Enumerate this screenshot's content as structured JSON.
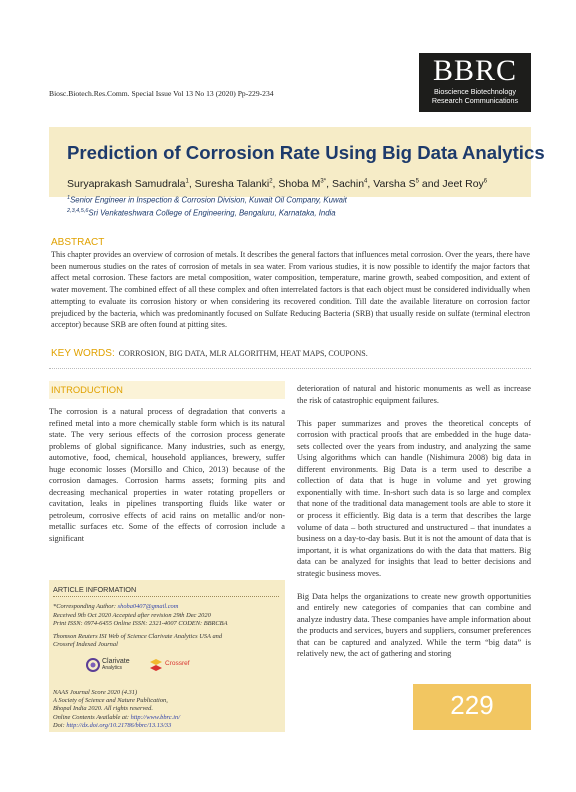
{
  "header": {
    "journal_ref": "Biosc.Biotech.Res.Comm. Special Issue Vol 13 No 13 (2020) Pp-229-234",
    "logo_big": "BBRC",
    "logo_line1": "Bioscience Biotechnology",
    "logo_line2": "Research Communications"
  },
  "article": {
    "title": "Prediction of Corrosion Rate Using Big Data Analytics",
    "authors": [
      {
        "name": "Suryaprakash Samudrala",
        "sup": "1"
      },
      {
        "name": "Suresha Talanki",
        "sup": "2"
      },
      {
        "name": "Shoba M",
        "sup": "3*"
      },
      {
        "name": "Sachin",
        "sup": "4"
      },
      {
        "name": "Varsha S",
        "sup": "5"
      },
      {
        "name": "Jeet Roy",
        "sup": "6"
      }
    ],
    "aff1_sup": "1",
    "aff1": "Senior Engineer in Inspection & Corrosion Division, Kuwait Oil Company, Kuwait",
    "aff2_sup": "2,3,4,5,6",
    "aff2": "Sri Venkateshwara College of Engineering, Bengaluru, Karnataka, India"
  },
  "abstract": {
    "heading": "ABSTRACT",
    "text": "This chapter provides an overview of corrosion of metals. It describes the general factors that influences metal corrosion. Over the years, there have been numerous studies on the rates of corrosion of metals in sea water. From various studies, it is now possible to identify the major factors that affect metal corrosion. These factors are metal composition, water composition, temperature, marine growth, seabed composition, and extent of water movement. The combined effect of all these complex and often interrelated factors is that each object must be considered individually when attempting to evaluate its corrosion history or when considering its recovered condition. Till date the available literature on corrosion factor prejudiced by the bacteria, which was predominantly focused on Sulfate Reducing Bacteria (SRB) that usually reside on sulfate (terminal electron acceptor) because SRB are often found at pitting sites."
  },
  "keywords": {
    "label": "KEY WORDS:",
    "text": "CORROSION, BIG DATA, MLR ALGORITHM, HEAT MAPS, COUPONS."
  },
  "intro": {
    "heading": "INTRODUCTION",
    "left_text": "The corrosion is a natural process of degradation that converts a refined metal into a more chemically stable form which is its natural state. The very serious effects of the corrosion process generate problems of global significance. Many industries, such as energy, automotive, food, chemical, household appliances, brewery, suffer huge economic losses (Morsillo and Chico, 2013) because of the corrosion damages. Corrosion harms assets; forming pits and decreasing mechanical properties in water rotating propellers or cavitation, leaks in pipelines transporting fluids like water or petroleum, corrosive effects of acid rains on metallic and/or non-metallic surfaces etc. Some of the effects of corrosion include a significant",
    "right_p1": "deterioration of natural and historic monuments as well as increase the risk of catastrophic equipment failures.",
    "right_p2": "This paper summarizes and proves the theoretical concepts of corrosion with practical proofs that are embedded in the huge data-sets collected over the years from industry, and analyzing the same Using algorithms which can handle (Nishimura 2008) big data in different environments. Big Data is a term used to describe a collection of data that is huge in volume and yet growing exponentially with time. In-short such data is so large and complex that none of the traditional data management tools are able to store it or process it efficiently. Big data is a term that describes the large volume of data – both structured and unstructured – that inundates a business on a day-to-day basis. But it is not the amount of data that is important, it is what organizations do with the data that matters. Big data can be analyzed for insights that lead to better decisions and strategic business moves.",
    "right_p3": "Big Data helps the organizations to create new growth opportunities and entirely new categories of companies that can combine and analyze industry data. These companies have ample information about the products and services, buyers and suppliers, consumer preferences that can be captured and analyzed. While the term “big data” is relatively new, the act of gathering and storing"
  },
  "info": {
    "heading": "ARTICLE INFORMATION",
    "corr_label": "*Corresponding Author:",
    "corr_email": "shoba0407@gmail.com",
    "received": "Received 9th Oct 2020 Accepted after revision 29th Dec 2020",
    "issn": "Print ISSN: 0974-6455 Online ISSN: 2321-4007 CODEN: BBRCBA",
    "indexed1": "Thomson Reuters ISI Web of Science Clarivate Analytics USA and",
    "indexed2": "Crossref Indexed Journal",
    "clarivate_label": "Clarivate",
    "clarivate_sub": "Analytics",
    "crossref_label": "Crossref",
    "naas": "NAAS Journal Score 2020 (4.31)",
    "society1": "A Society of Science and Nature Publication,",
    "society2": "Bhopal India 2020. All rights reserved.",
    "online_label": "Online Contents Available at:",
    "online_url": "http://www.bbrc.in/",
    "doi_label": "Doi:",
    "doi_url": "http://dx.doi.org/10.21786/bbrc/13.13/33"
  },
  "page_number": "229",
  "colors": {
    "accent": "#e0a100",
    "title_blue": "#1d3a6b",
    "band": "#f6ecc7",
    "page_box": "#f2c661"
  }
}
